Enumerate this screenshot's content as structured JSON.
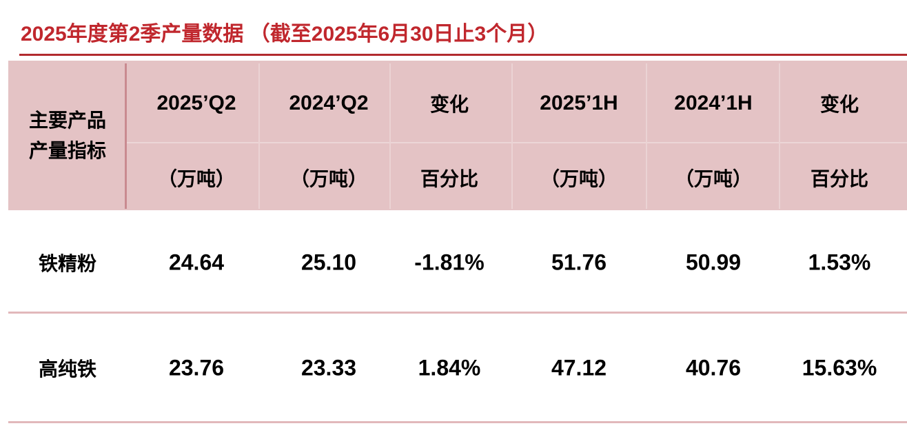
{
  "title": "2025年度第2季产量数据 （截至2025年6月30日止3个月）",
  "table": {
    "row_header": [
      "主要产品",
      "产量指标"
    ],
    "columns": [
      "2025’Q2",
      "2024’Q2",
      "变化",
      "2025’1H",
      "2024’1H",
      "变化"
    ],
    "units": [
      "（万吨）",
      "（万吨）",
      "百分比",
      "（万吨）",
      "（万吨）",
      "百分比"
    ],
    "rows": [
      [
        "铁精粉",
        "24.64",
        "25.10",
        "-1.81%",
        "51.76",
        "50.99",
        "1.53%"
      ],
      [
        "高纯铁",
        "23.76",
        "23.33",
        "1.84%",
        "47.12",
        "40.76",
        "15.63%"
      ]
    ]
  }
}
